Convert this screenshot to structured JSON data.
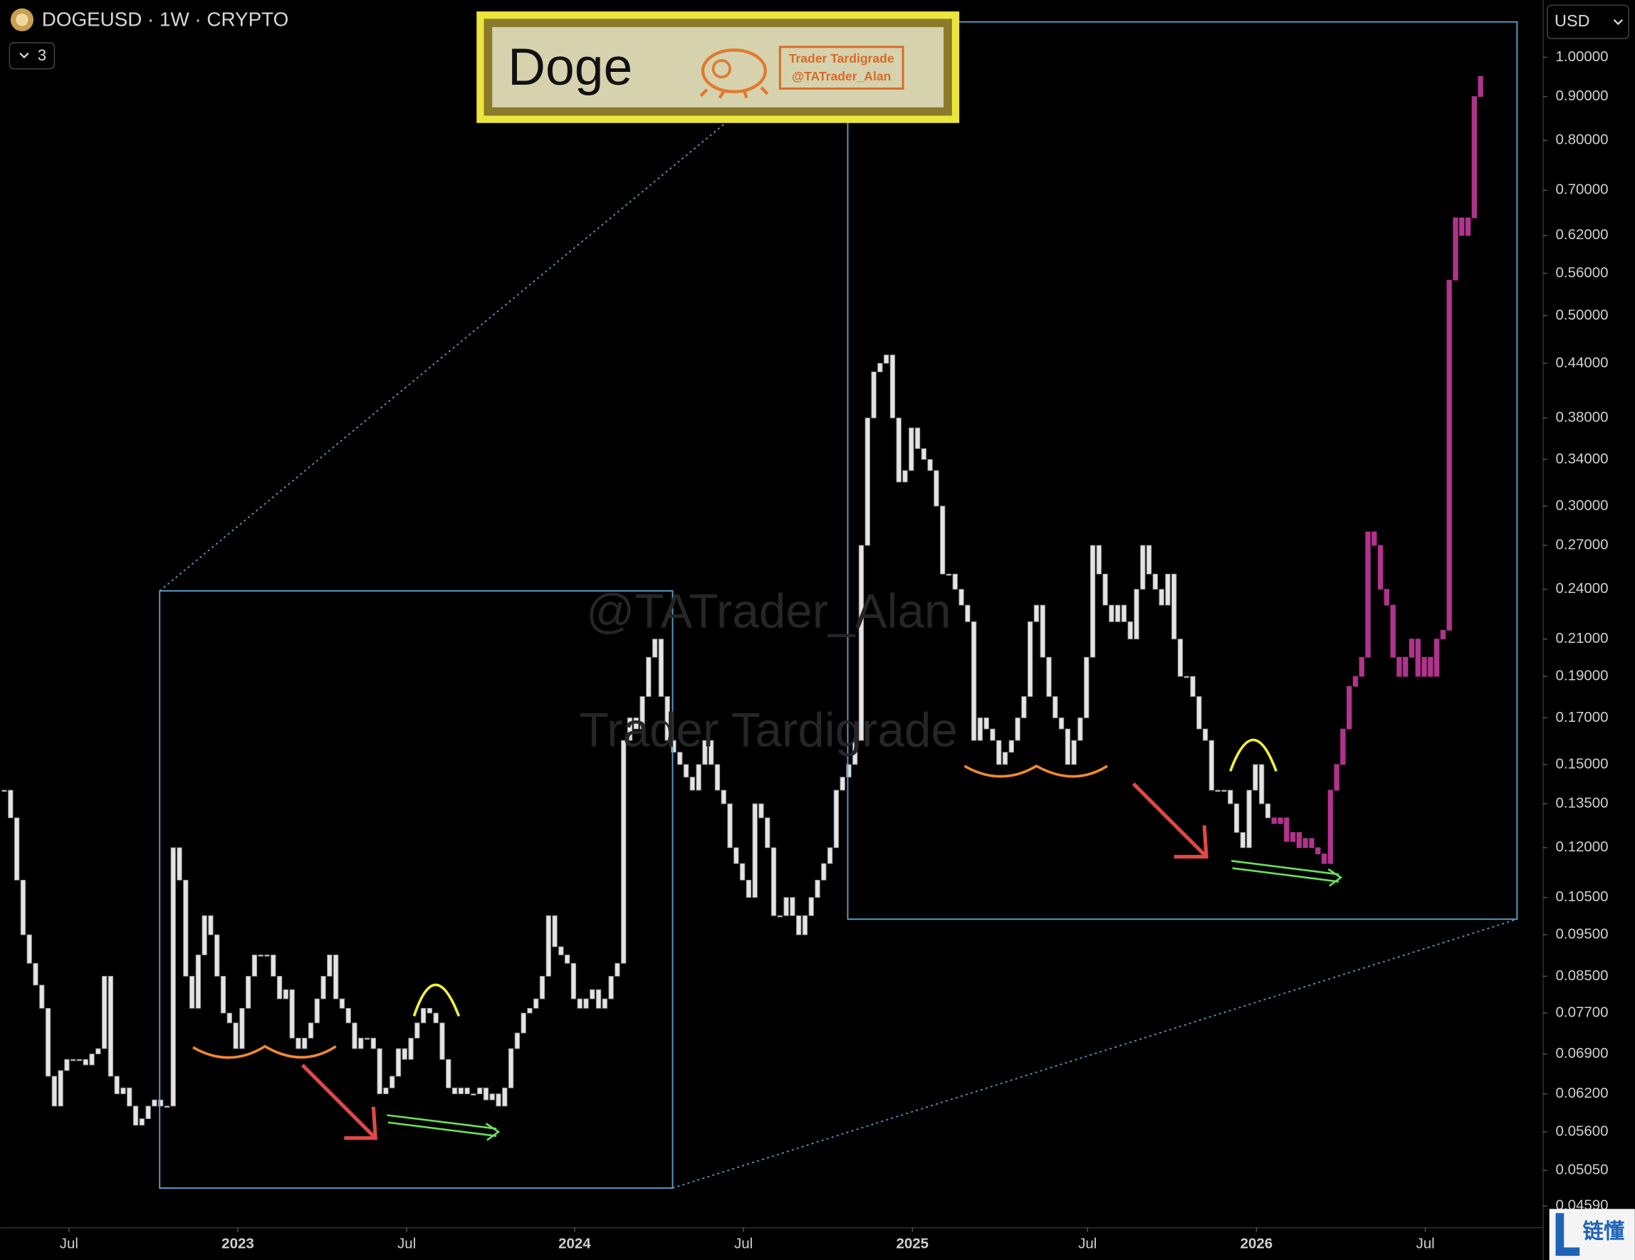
{
  "header": {
    "symbol": "DOGEUSD · 1W · CRYPTO",
    "collapsed_count": 3,
    "currency": "USD"
  },
  "banner": {
    "title": "Doge",
    "author": "Trader Tardigrade",
    "handle": "@TATrader_Alan"
  },
  "watermark": {
    "handle": "@TATrader_Alan",
    "author": "Trader Tardigrade"
  },
  "logo": "链懂",
  "chart_data": {
    "type": "candlestick",
    "log": true,
    "xlim": [
      -0.667,
      246
    ],
    "xticks": [
      {
        "value": 10.33,
        "label": "Jul"
      },
      {
        "value": 37.33,
        "label": "2023"
      },
      {
        "value": 64.33,
        "label": "Jul"
      },
      {
        "value": 91.17,
        "label": "2024"
      },
      {
        "value": 118.17,
        "label": "Jul"
      },
      {
        "value": 145.17,
        "label": "2025"
      },
      {
        "value": 173.17,
        "label": "Jul"
      },
      {
        "value": 200.17,
        "label": "2026"
      },
      {
        "value": 227.17,
        "label": "Jul"
      }
    ],
    "ylim": [
      0.0433,
      1.166
    ],
    "yticks": [
      {
        "value": 1,
        "label": "1.00000"
      },
      {
        "value": 0.9,
        "label": "0.90000"
      },
      {
        "value": 0.8,
        "label": "0.80000"
      },
      {
        "value": 0.7,
        "label": "0.70000"
      },
      {
        "value": 0.62,
        "label": "0.62000"
      },
      {
        "value": 0.56,
        "label": "0.56000"
      },
      {
        "value": 0.5,
        "label": "0.50000"
      },
      {
        "value": 0.44,
        "label": "0.44000"
      },
      {
        "value": 0.38,
        "label": "0.38000"
      },
      {
        "value": 0.34,
        "label": "0.34000"
      },
      {
        "value": 0.3,
        "label": "0.30000"
      },
      {
        "value": 0.27,
        "label": "0.27000"
      },
      {
        "value": 0.24,
        "label": "0.24000"
      },
      {
        "value": 0.21,
        "label": "0.21000"
      },
      {
        "value": 0.19,
        "label": "0.19000"
      },
      {
        "value": 0.17,
        "label": "0.17000"
      },
      {
        "value": 0.15,
        "label": "0.15000"
      },
      {
        "value": 0.135,
        "label": "0.13500"
      },
      {
        "value": 0.12,
        "label": "0.12000"
      },
      {
        "value": 0.105,
        "label": "0.10500"
      },
      {
        "value": 0.095,
        "label": "0.09500"
      },
      {
        "value": 0.085,
        "label": "0.08500"
      },
      {
        "value": 0.077,
        "label": "0.07700"
      },
      {
        "value": 0.069,
        "label": "0.06900"
      },
      {
        "value": 0.062,
        "label": "0.06200"
      },
      {
        "value": 0.056,
        "label": "0.05600"
      },
      {
        "value": 0.0505,
        "label": "0.05050"
      },
      {
        "value": 0.0459,
        "label": "0.04590"
      }
    ],
    "series": [
      {
        "color": "#e4e4e4",
        "values": [
          0.14,
          0.13,
          0.11,
          0.095,
          0.088,
          0.083,
          0.078,
          0.065,
          0.06,
          0.066,
          0.068,
          0.068,
          0.068,
          0.067,
          0.069,
          0.07,
          0.085,
          0.065,
          0.062,
          0.063,
          0.06,
          0.057,
          0.058,
          0.06,
          0.061,
          0.06,
          0.06,
          0.12,
          0.11,
          0.085,
          0.078,
          0.09,
          0.1,
          0.095,
          0.085,
          0.077,
          0.075,
          0.07,
          0.078,
          0.085,
          0.09,
          0.09,
          0.09,
          0.085,
          0.08,
          0.082,
          0.072,
          0.07,
          0.072,
          0.075,
          0.08,
          0.085,
          0.09,
          0.08,
          0.078,
          0.075,
          0.07,
          0.072,
          0.072,
          0.07,
          0.062,
          0.063,
          0.065,
          0.07,
          0.068,
          0.072,
          0.075,
          0.078,
          0.077,
          0.075,
          0.068,
          0.063,
          0.062,
          0.063,
          0.062,
          0.062,
          0.063,
          0.061,
          0.062,
          0.06,
          0.063,
          0.07,
          0.073,
          0.077,
          0.078,
          0.08,
          0.085,
          0.1,
          0.092,
          0.09,
          0.088,
          0.08,
          0.078,
          0.08,
          0.082,
          0.078,
          0.08,
          0.085,
          0.088,
          0.16,
          0.17,
          0.165,
          0.18,
          0.2,
          0.21,
          0.18,
          0.16,
          0.155,
          0.15,
          0.145,
          0.14,
          0.15,
          0.16,
          0.15,
          0.14,
          0.135,
          0.12,
          0.115,
          0.11,
          0.105,
          0.135,
          0.13,
          0.12,
          0.1,
          0.1,
          0.105,
          0.1,
          0.095,
          0.1,
          0.105,
          0.11,
          0.115,
          0.12,
          0.14,
          0.145,
          0.15,
          0.16,
          0.27,
          0.38,
          0.43,
          0.44,
          0.45,
          0.38,
          0.32,
          0.33,
          0.37,
          0.35,
          0.34,
          0.33,
          0.3,
          0.25,
          0.25,
          0.24,
          0.23,
          0.22,
          0.16,
          0.17,
          0.165,
          0.16,
          0.15,
          0.155,
          0.16,
          0.17,
          0.18,
          0.22,
          0.23,
          0.2,
          0.18,
          0.17,
          0.165,
          0.15,
          0.16,
          0.17,
          0.2,
          0.27,
          0.25,
          0.23,
          0.22,
          0.23,
          0.22,
          0.21,
          0.24,
          0.27,
          0.25,
          0.24,
          0.23,
          0.25,
          0.21,
          0.19,
          0.19,
          0.18,
          0.165,
          0.16,
          0.14,
          0.14,
          0.14,
          0.135,
          0.125,
          0.12,
          0.14,
          0.15,
          0.135,
          0.13,
          null,
          null,
          null,
          null,
          null,
          null,
          null,
          null,
          null,
          null,
          null,
          null,
          null,
          null,
          null,
          null,
          null,
          null,
          null,
          null,
          null,
          null,
          null,
          null,
          null,
          null,
          null,
          null,
          null,
          null,
          null,
          null,
          null,
          null
        ]
      },
      {
        "color": "#b0348c",
        "values": [
          null,
          null,
          null,
          null,
          null,
          null,
          null,
          null,
          null,
          null,
          null,
          null,
          null,
          null,
          null,
          null,
          null,
          null,
          null,
          null,
          null,
          null,
          null,
          null,
          null,
          null,
          null,
          null,
          null,
          null,
          null,
          null,
          null,
          null,
          null,
          null,
          null,
          null,
          null,
          null,
          null,
          null,
          null,
          null,
          null,
          null,
          null,
          null,
          null,
          null,
          null,
          null,
          null,
          null,
          null,
          null,
          null,
          null,
          null,
          null,
          null,
          null,
          null,
          null,
          null,
          null,
          null,
          null,
          null,
          null,
          null,
          null,
          null,
          null,
          null,
          null,
          null,
          null,
          null,
          null,
          null,
          null,
          null,
          null,
          null,
          null,
          null,
          null,
          null,
          null,
          null,
          null,
          null,
          null,
          null,
          null,
          null,
          null,
          null,
          null,
          null,
          null,
          null,
          null,
          null,
          null,
          null,
          null,
          null,
          null,
          null,
          null,
          null,
          null,
          null,
          null,
          null,
          null,
          null,
          null,
          null,
          null,
          null,
          null,
          null,
          null,
          null,
          null,
          null,
          null,
          null,
          null,
          null,
          null,
          null,
          null,
          null,
          null,
          null,
          null,
          null,
          null,
          null,
          null,
          null,
          null,
          null,
          null,
          null,
          null,
          null,
          null,
          null,
          null,
          null,
          null,
          null,
          null,
          null,
          null,
          null,
          null,
          null,
          null,
          null,
          null,
          null,
          null,
          null,
          null,
          null,
          null,
          null,
          null,
          null,
          null,
          null,
          null,
          null,
          null,
          null,
          null,
          null,
          null,
          null,
          null,
          null,
          null,
          null,
          null,
          null,
          null,
          null,
          null,
          null,
          null,
          null,
          null,
          null,
          null,
          null,
          null,
          null,
          0.128,
          0.13,
          0.122,
          0.125,
          0.12,
          0.123,
          0.12,
          0.118,
          0.115,
          0.14,
          0.15,
          0.165,
          0.185,
          0.19,
          0.2,
          0.28,
          0.27,
          0.24,
          0.23,
          0.2,
          0.19,
          0.2,
          0.21,
          0.19,
          0.2,
          0.19,
          0.21,
          0.215,
          0.55,
          0.65,
          0.62,
          0.65,
          0.9,
          0.95
        ]
      }
    ]
  }
}
